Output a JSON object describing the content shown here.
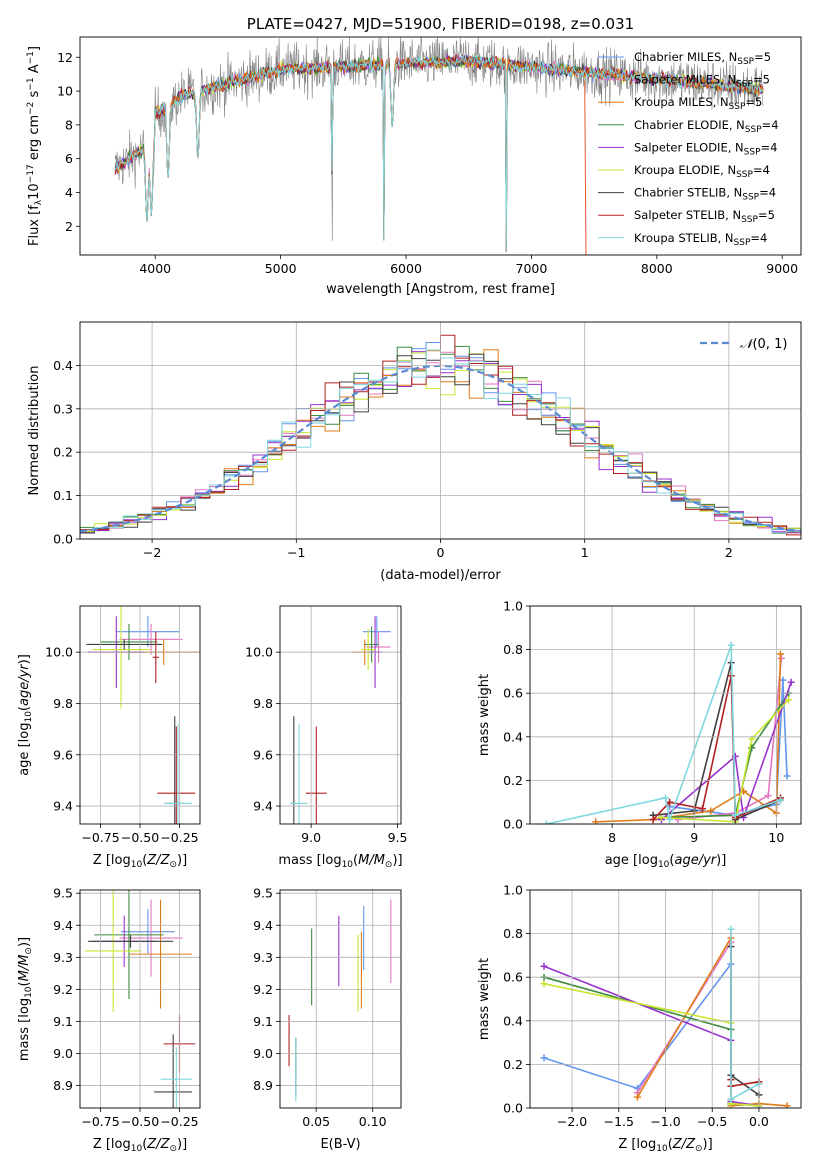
{
  "figure_title": "PLATE=0427, MJD=51900, FIBERID=0198, z=0.031",
  "colors": {
    "Chabrier MILES": "#6495ed",
    "Salpeter MILES": "#e377c2",
    "Kroupa MILES": "#e07b1a",
    "Chabrier ELODIE": "#3d8b3d",
    "Salpeter ELODIE": "#9932cc",
    "Kroupa ELODIE": "#c8e632",
    "Chabrier STELIB": "#404040",
    "Salpeter STELIB": "#b22222",
    "Kroupa STELIB": "#7fd8e0"
  },
  "chart_data": [
    {
      "id": "spectrum",
      "type": "line",
      "title": "PLATE=0427, MJD=51900, FIBERID=0198, z=0.031",
      "xlabel": "wavelength [Angstrom, rest frame]",
      "ylabel_parts": [
        "Flux [f",
        "λ",
        "10",
        "−17",
        " erg cm",
        "−2",
        " s",
        "−1",
        " A",
        "−1",
        "]"
      ],
      "xlim": [
        3400,
        9150
      ],
      "ylim": [
        0.3,
        13.2
      ],
      "xticks": [
        4000,
        5000,
        6000,
        7000,
        8000,
        9000
      ],
      "yticks": [
        2,
        4,
        6,
        8,
        10,
        12
      ],
      "data_range": [
        3680,
        8850
      ],
      "data_color": "#808080",
      "dips": [
        [
          3934,
          2.2
        ],
        [
          3969,
          2.6
        ],
        [
          4102,
          4.8
        ],
        [
          4340,
          6.0
        ],
        [
          5411,
          0.5
        ],
        [
          5825,
          0.5
        ],
        [
          5890,
          7.8
        ],
        [
          6800,
          0.5
        ]
      ],
      "legend": [
        {
          "name": "Chabrier MILES",
          "n": "5"
        },
        {
          "name": "Salpeter MILES",
          "n": "5"
        },
        {
          "name": "Kroupa MILES",
          "n": "5"
        },
        {
          "name": "Chabrier ELODIE",
          "n": "4"
        },
        {
          "name": "Salpeter ELODIE",
          "n": "4"
        },
        {
          "name": "Kroupa ELODIE",
          "n": "4"
        },
        {
          "name": "Chabrier STELIB",
          "n": "4"
        },
        {
          "name": "Salpeter STELIB",
          "n": "5"
        },
        {
          "name": "Kroupa STELIB",
          "n": "4"
        }
      ]
    },
    {
      "id": "residuals",
      "type": "histogram",
      "xlabel": "(data-model)/error",
      "ylabel": "Normed distribution",
      "xlim": [
        -2.5,
        2.5
      ],
      "ylim": [
        0,
        0.5
      ],
      "xticks": [
        -2,
        -1,
        0,
        1,
        2
      ],
      "xticklabels": [
        "−2",
        "−1",
        "0",
        "1",
        "2"
      ],
      "yticks": [
        0.0,
        0.1,
        0.2,
        0.3,
        0.4
      ],
      "yticklabels": [
        "0.0",
        "0.1",
        "0.2",
        "0.3",
        "0.4"
      ],
      "bin_width": 0.1,
      "reference_curve": "N(0,1)",
      "legend": [
        {
          "name": "N(0,1)"
        }
      ]
    },
    {
      "id": "age_vs_Z",
      "type": "scatter_errorbar",
      "xlabel": "Z [log10(Z/Z⊙)]",
      "ylabel": "age [log10(age/yr)]",
      "xlim": [
        -0.88,
        -0.12
      ],
      "ylim": [
        9.33,
        10.18
      ],
      "xticks": [
        -0.75,
        -0.5,
        -0.25
      ],
      "xticklabels": [
        "−0.75",
        "−0.50",
        "−0.25"
      ],
      "yticks": [
        9.4,
        9.6,
        9.8,
        10.0
      ],
      "yticklabels": [
        "9.4",
        "9.6",
        "9.8",
        "10.0"
      ],
      "points": [
        {
          "series": "Chabrier MILES",
          "x": -0.45,
          "xerr": 0.2,
          "y": 10.08,
          "yerr": 0.06
        },
        {
          "series": "Salpeter MILES",
          "x": -0.43,
          "xerr": 0.2,
          "y": 10.05,
          "yerr": 0.06
        },
        {
          "series": "Kroupa MILES",
          "x": -0.35,
          "xerr": 0.22,
          "y": 10.0,
          "yerr": 0.05
        },
        {
          "series": "Chabrier ELODIE",
          "x": -0.57,
          "xerr": 0.18,
          "y": 10.04,
          "yerr": 0.07
        },
        {
          "series": "Salpeter ELODIE",
          "x": -0.65,
          "xerr": 0.18,
          "y": 10.0,
          "yerr": 0.14
        },
        {
          "series": "Kroupa ELODIE",
          "x": -0.62,
          "xerr": 0.18,
          "y": 10.01,
          "yerr": 0.23
        },
        {
          "series": "Chabrier STELIB",
          "x": -0.28,
          "xerr": 0.06,
          "y": 9.41,
          "yerr": 0.34
        },
        {
          "series": "Salpeter STELIB",
          "x": -0.27,
          "xerr": 0.12,
          "y": 9.45,
          "yerr": 0.26
        },
        {
          "series": "Kroupa STELIB",
          "x": -0.26,
          "xerr": 0.09,
          "y": 9.41,
          "yerr": 0.31
        },
        {
          "series": "Chabrier STELIB",
          "x": -0.6,
          "xerr": 0.24,
          "y": 10.03,
          "yerr": 0.02
        },
        {
          "series": "Salpeter STELIB",
          "x": -0.4,
          "xerr": 0.02,
          "y": 9.98,
          "yerr": 0.1
        }
      ]
    },
    {
      "id": "age_vs_mass",
      "type": "scatter_errorbar",
      "xlabel": "mass [log10(M/M⊙)]",
      "ylabel": "",
      "xlim": [
        8.82,
        9.52
      ],
      "ylim": [
        9.33,
        10.18
      ],
      "xticks": [
        9.0,
        9.5
      ],
      "xticklabels": [
        "9.0",
        "9.5"
      ],
      "yticks": [
        9.4,
        9.6,
        9.8,
        10.0
      ],
      "yticklabels": [
        "9.4",
        "9.6",
        "9.8",
        "10.0"
      ],
      "points": [
        {
          "series": "Chabrier MILES",
          "x": 9.38,
          "xerr": 0.08,
          "y": 10.08,
          "yerr": 0.06
        },
        {
          "series": "Salpeter MILES",
          "x": 9.39,
          "xerr": 0.07,
          "y": 10.02,
          "yerr": 0.06
        },
        {
          "series": "Kroupa MILES",
          "x": 9.31,
          "xerr": 0.07,
          "y": 10.0,
          "yerr": 0.05
        },
        {
          "series": "Chabrier ELODIE",
          "x": 9.35,
          "xerr": 0.04,
          "y": 10.03,
          "yerr": 0.07
        },
        {
          "series": "Salpeter ELODIE",
          "x": 9.37,
          "xerr": 0.04,
          "y": 10.0,
          "yerr": 0.14
        },
        {
          "series": "Kroupa ELODIE",
          "x": 9.33,
          "xerr": 0.04,
          "y": 10.01,
          "yerr": 0.08
        },
        {
          "series": "Chabrier STELIB",
          "x": 8.9,
          "xerr": 0.02,
          "y": 9.41,
          "yerr": 0.34
        },
        {
          "series": "Salpeter STELIB",
          "x": 9.03,
          "xerr": 0.06,
          "y": 9.45,
          "yerr": 0.26
        },
        {
          "series": "Kroupa STELIB",
          "x": 8.93,
          "xerr": 0.05,
          "y": 9.41,
          "yerr": 0.31
        }
      ]
    },
    {
      "id": "weight_vs_age",
      "type": "line",
      "xlabel": "age [log10(age/yr)]",
      "ylabel": "mass weight",
      "xlim": [
        7.0,
        10.3
      ],
      "ylim": [
        0.0,
        1.0
      ],
      "xticks": [
        8,
        9,
        10
      ],
      "xticklabels": [
        "8",
        "9",
        "10"
      ],
      "yticks": [
        0.0,
        0.2,
        0.4,
        0.6,
        0.8,
        1.0
      ],
      "yticklabels": [
        "0.0",
        "0.2",
        "0.4",
        "0.6",
        "0.8",
        "1.0"
      ],
      "series": [
        {
          "name": "Chabrier MILES",
          "x": [
            8.7,
            9.5,
            10.0,
            10.08,
            10.13
          ],
          "y": [
            0.08,
            0.04,
            0.09,
            0.66,
            0.22
          ]
        },
        {
          "name": "Salpeter MILES",
          "x": [
            8.8,
            9.5,
            9.9,
            10.06
          ],
          "y": [
            0.02,
            0.05,
            0.13,
            0.76
          ]
        },
        {
          "name": "Kroupa MILES",
          "x": [
            7.8,
            8.5,
            9.2,
            9.6,
            10.0,
            10.05
          ],
          "y": [
            0.01,
            0.02,
            0.06,
            0.15,
            0.05,
            0.78
          ]
        },
        {
          "name": "Chabrier ELODIE",
          "x": [
            8.6,
            9.5,
            9.7,
            10.15
          ],
          "y": [
            0.03,
            0.04,
            0.35,
            0.6
          ]
        },
        {
          "name": "Salpeter ELODIE",
          "x": [
            8.6,
            9.5,
            9.6,
            10.18
          ],
          "y": [
            0.02,
            0.31,
            0.03,
            0.65
          ]
        },
        {
          "name": "Kroupa ELODIE",
          "x": [
            8.6,
            9.5,
            9.7,
            10.15
          ],
          "y": [
            0.03,
            0.01,
            0.39,
            0.57
          ]
        },
        {
          "name": "Chabrier STELIB",
          "x": [
            8.5,
            9.0,
            9.45,
            9.5,
            10.05
          ],
          "y": [
            0.04,
            0.06,
            0.74,
            0.02,
            0.11
          ]
        },
        {
          "name": "Salpeter STELIB",
          "x": [
            8.5,
            8.7,
            9.1,
            9.45,
            9.5,
            10.05
          ],
          "y": [
            0.02,
            0.1,
            0.07,
            0.68,
            0.03,
            0.12
          ]
        },
        {
          "name": "Kroupa STELIB",
          "x": [
            7.2,
            8.65,
            8.7,
            9.45,
            9.5,
            10.05
          ],
          "y": [
            0.0,
            0.12,
            0.02,
            0.82,
            0.04,
            0.11
          ]
        }
      ]
    },
    {
      "id": "mass_vs_Z",
      "type": "scatter_errorbar",
      "xlabel": "Z [log10(Z/Z⊙)]",
      "ylabel": "mass [log10(M/M⊙)]",
      "xlim": [
        -0.88,
        -0.12
      ],
      "ylim": [
        8.83,
        9.51
      ],
      "xticks": [
        -0.75,
        -0.5,
        -0.25
      ],
      "xticklabels": [
        "−0.75",
        "−0.50",
        "−0.25"
      ],
      "yticks": [
        8.9,
        9.0,
        9.1,
        9.2,
        9.3,
        9.4,
        9.5
      ],
      "yticklabels": [
        "8.9",
        "9.0",
        "9.1",
        "9.2",
        "9.3",
        "9.4",
        "9.5"
      ],
      "points": [
        {
          "series": "Chabrier MILES",
          "x": -0.45,
          "xerr": 0.17,
          "y": 9.38,
          "yerr": 0.07
        },
        {
          "series": "Salpeter MILES",
          "x": -0.43,
          "xerr": 0.2,
          "y": 9.36,
          "yerr": 0.12
        },
        {
          "series": "Kroupa MILES",
          "x": -0.37,
          "xerr": 0.2,
          "y": 9.31,
          "yerr": 0.17
        },
        {
          "series": "Chabrier ELODIE",
          "x": -0.57,
          "xerr": 0.22,
          "y": 9.37,
          "yerr": 0.2
        },
        {
          "series": "Salpeter ELODIE",
          "x": -0.6,
          "xerr": 0.2,
          "y": 9.35,
          "yerr": 0.08
        },
        {
          "series": "Kroupa ELODIE",
          "x": -0.67,
          "xerr": 0.18,
          "y": 9.32,
          "yerr": 0.19
        },
        {
          "series": "Chabrier STELIB",
          "x": -0.29,
          "xerr": 0.12,
          "y": 8.88,
          "yerr": 0.18
        },
        {
          "series": "Salpeter STELIB",
          "x": -0.25,
          "xerr": 0.1,
          "y": 9.03,
          "yerr": 0.09
        },
        {
          "series": "Kroupa STELIB",
          "x": -0.27,
          "xerr": 0.1,
          "y": 8.92,
          "yerr": 0.1
        },
        {
          "series": "Chabrier STELIB",
          "x": -0.56,
          "xerr": 0.27,
          "y": 9.35,
          "yerr": 0.02
        }
      ]
    },
    {
      "id": "mass_vs_ebv",
      "type": "scatter_errorbar",
      "xlabel": "E(B-V)",
      "ylabel": "",
      "xlim": [
        0.018,
        0.125
      ],
      "ylim": [
        8.83,
        9.51
      ],
      "xticks": [
        0.05,
        0.1
      ],
      "xticklabels": [
        "0.05",
        "0.10"
      ],
      "yticks": [
        8.9,
        9.0,
        9.1,
        9.2,
        9.3,
        9.4,
        9.5
      ],
      "yticklabels": [
        "8.9",
        "9.0",
        "9.1",
        "9.2",
        "9.3",
        "9.4",
        "9.5"
      ],
      "points": [
        {
          "series": "Chabrier MILES",
          "x": 0.092,
          "xerr": 0,
          "y": 9.36,
          "yerr": 0.1
        },
        {
          "series": "Salpeter MILES",
          "x": 0.116,
          "xerr": 0,
          "y": 9.35,
          "yerr": 0.13
        },
        {
          "series": "Kroupa MILES",
          "x": 0.09,
          "xerr": 0,
          "y": 9.26,
          "yerr": 0.12
        },
        {
          "series": "Chabrier ELODIE",
          "x": 0.046,
          "xerr": 0,
          "y": 9.27,
          "yerr": 0.12
        },
        {
          "series": "Salpeter ELODIE",
          "x": 0.07,
          "xerr": 0,
          "y": 9.32,
          "yerr": 0.11
        },
        {
          "series": "Kroupa ELODIE",
          "x": 0.087,
          "xerr": 0,
          "y": 9.25,
          "yerr": 0.12
        },
        {
          "series": "Chabrier STELIB",
          "x": 0.032,
          "xerr": 0,
          "y": 8.96,
          "yerr": 0.09
        },
        {
          "series": "Salpeter STELIB",
          "x": 0.026,
          "xerr": 0,
          "y": 9.04,
          "yerr": 0.08
        },
        {
          "series": "Kroupa STELIB",
          "x": 0.032,
          "xerr": 0,
          "y": 8.95,
          "yerr": 0.1
        }
      ]
    },
    {
      "id": "weight_vs_Z",
      "type": "line",
      "xlabel": "Z [log10(Z/Z⊙)]",
      "ylabel": "mass weight",
      "xlim": [
        -2.45,
        0.45
      ],
      "ylim": [
        0.0,
        1.0
      ],
      "xticks": [
        -2.0,
        -1.5,
        -1.0,
        -0.5,
        0.0
      ],
      "xticklabels": [
        "−2.0",
        "−1.5",
        "−1.0",
        "−0.5",
        "0.0"
      ],
      "yticks": [
        0.0,
        0.2,
        0.4,
        0.6,
        0.8,
        1.0
      ],
      "yticklabels": [
        "0.0",
        "0.2",
        "0.4",
        "0.6",
        "0.8",
        "1.0"
      ],
      "series": [
        {
          "name": "Chabrier MILES",
          "x": [
            -2.3,
            -1.3,
            -0.3,
            -0.3
          ],
          "y": [
            0.23,
            0.09,
            0.66,
            0.02
          ]
        },
        {
          "name": "Salpeter MILES",
          "x": [
            -1.3,
            -0.3,
            -0.3
          ],
          "y": [
            0.07,
            0.76,
            0.13
          ]
        },
        {
          "name": "Kroupa MILES",
          "x": [
            -1.3,
            -0.3,
            -0.3,
            0.0,
            0.3
          ],
          "y": [
            0.05,
            0.78,
            0.01,
            0.02,
            0.01
          ]
        },
        {
          "name": "Chabrier ELODIE",
          "x": [
            -2.3,
            -0.3,
            -0.3,
            0.0
          ],
          "y": [
            0.6,
            0.36,
            0.02,
            0.01
          ]
        },
        {
          "name": "Salpeter ELODIE",
          "x": [
            -2.3,
            -0.3,
            -0.3,
            0.0
          ],
          "y": [
            0.65,
            0.31,
            0.03,
            0.01
          ]
        },
        {
          "name": "Kroupa ELODIE",
          "x": [
            -2.3,
            -0.3,
            -0.3,
            0.0
          ],
          "y": [
            0.57,
            0.39,
            0.02,
            0.01
          ]
        },
        {
          "name": "Chabrier STELIB",
          "x": [
            -0.3,
            -0.3,
            0.0
          ],
          "y": [
            0.74,
            0.15,
            0.06
          ]
        },
        {
          "name": "Salpeter STELIB",
          "x": [
            -0.3,
            -0.3,
            0.0
          ],
          "y": [
            0.13,
            0.1,
            0.12
          ]
        },
        {
          "name": "Kroupa STELIB",
          "x": [
            -0.3,
            -0.3,
            0.0
          ],
          "y": [
            0.82,
            0.04,
            0.11
          ]
        }
      ]
    }
  ]
}
